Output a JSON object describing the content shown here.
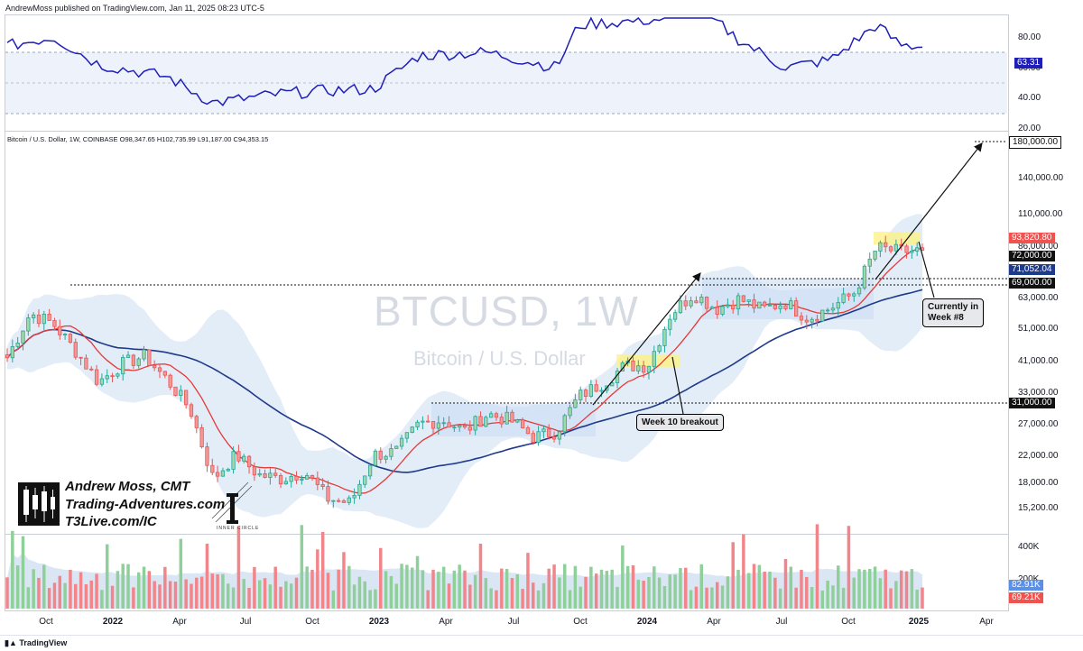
{
  "header": {
    "published_line": "AndrewMoss published on TradingView.com, Jan 11, 2025 08:23 UTC-5",
    "symbol_line": "Bitcoin / U.S. Dollar, 1W, COINBASE  O98,347.65  H102,735.99  L91,187.00  C94,353.15"
  },
  "watermark": {
    "symbol": "BTCUSD, 1W",
    "name": "Bitcoin / U.S. Dollar"
  },
  "branding": {
    "name": "Andrew Moss, CMT",
    "site": "Trading-Adventures.com",
    "t3": "T3Live.com/IC",
    "inner_circle": "INNER CIRCLE",
    "footer": "TradingView"
  },
  "annotations": {
    "week10": "Week 10 breakout",
    "current_line1": "Currently in",
    "current_line2": "Week #8"
  },
  "colors": {
    "up": "#26a69a",
    "down": "#ef5350",
    "up_fill": "#a5d6a7",
    "down_fill": "#ef9a9a",
    "ema_fast": "#e53935",
    "sma_slow": "#1e3a8a",
    "rsi_line": "#1f1fb8",
    "bb_fill": "#e3edf8",
    "highlight": "#fff176"
  },
  "rsi_panel": {
    "axis_labels": [
      "80.00",
      "60.00",
      "40.00",
      "20.00"
    ],
    "current_label": "63.31"
  },
  "price_panel": {
    "axis_labels": [
      "140,000.00",
      "110,000.00",
      "86,000.00",
      "63,000.00",
      "51,000.00",
      "41,000.00",
      "33,000.00",
      "27,000.00",
      "22,000.00",
      "18,000.00",
      "15,200.00"
    ],
    "tags": [
      {
        "label": "180,000.00",
        "style": "dark"
      },
      {
        "label": "93,820.80",
        "style": "red"
      },
      {
        "label": "72,000.00",
        "style": "black"
      },
      {
        "label": "71,052.04",
        "style": "navy"
      },
      {
        "label": "69,000.00",
        "style": "black"
      },
      {
        "label": "31,000.00",
        "style": "black"
      }
    ]
  },
  "volume_panel": {
    "axis_labels": [
      "400K",
      "200K"
    ],
    "tags": [
      {
        "label": "82.91K",
        "style": "blue"
      },
      {
        "label": "69.21K",
        "style": "red"
      }
    ]
  },
  "time_axis": [
    "Oct",
    "2022",
    "Apr",
    "Jul",
    "Oct",
    "2023",
    "Apr",
    "Jul",
    "Oct",
    "2024",
    "Apr",
    "Jul",
    "Oct",
    "2025",
    "Apr"
  ],
  "chart_data": {
    "type": "candlestick",
    "title": "",
    "timeframe": "1W",
    "x_start": "2021-09-06",
    "x_end": "2025-01-06",
    "y_scale": "log",
    "ylim": [
      13500,
      200000
    ],
    "key_levels": [
      {
        "price": 180000
      },
      {
        "price": 69000
      },
      {
        "price": 72000
      },
      {
        "price": 31000
      }
    ],
    "series": [
      {
        "name": "Weekly close (approx.)",
        "x": [
          "2021-09",
          "2021-10",
          "2021-11",
          "2021-12",
          "2022-01",
          "2022-02",
          "2022-03",
          "2022-04",
          "2022-05",
          "2022-06",
          "2022-07",
          "2022-08",
          "2022-09",
          "2022-10",
          "2022-11",
          "2022-12",
          "2023-01",
          "2023-02",
          "2023-03",
          "2023-04",
          "2023-05",
          "2023-06",
          "2023-07",
          "2023-08",
          "2023-09",
          "2023-10",
          "2023-11",
          "2023-12",
          "2024-01",
          "2024-02",
          "2024-03",
          "2024-04",
          "2024-05",
          "2024-06",
          "2024-07",
          "2024-08",
          "2024-09",
          "2024-10",
          "2024-11",
          "2024-12",
          "2025-01"
        ],
        "values": [
          45000,
          61000,
          57000,
          47000,
          38000,
          43000,
          45500,
          38500,
          31500,
          19500,
          23000,
          20000,
          19500,
          20500,
          17000,
          16500,
          23000,
          23500,
          28500,
          29300,
          27200,
          30500,
          29200,
          26000,
          27000,
          34500,
          37700,
          42500,
          42600,
          61000,
          70000,
          63000,
          67500,
          62700,
          66000,
          59000,
          63500,
          70200,
          96000,
          93500,
          94353
        ]
      },
      {
        "name": "RSI (14)",
        "x": [
          "2021-09",
          "2021-11",
          "2022-01",
          "2022-04",
          "2022-06",
          "2022-09",
          "2022-11",
          "2023-01",
          "2023-03",
          "2023-06",
          "2023-09",
          "2023-10",
          "2023-12",
          "2024-02",
          "2024-03",
          "2024-05",
          "2024-07",
          "2024-09",
          "2024-11",
          "2024-12",
          "2025-01"
        ],
        "values": [
          64,
          70,
          52,
          44,
          27,
          33,
          35,
          36,
          58,
          60,
          50,
          78,
          80,
          82,
          92,
          68,
          50,
          55,
          78,
          65,
          63.31
        ]
      }
    ]
  }
}
